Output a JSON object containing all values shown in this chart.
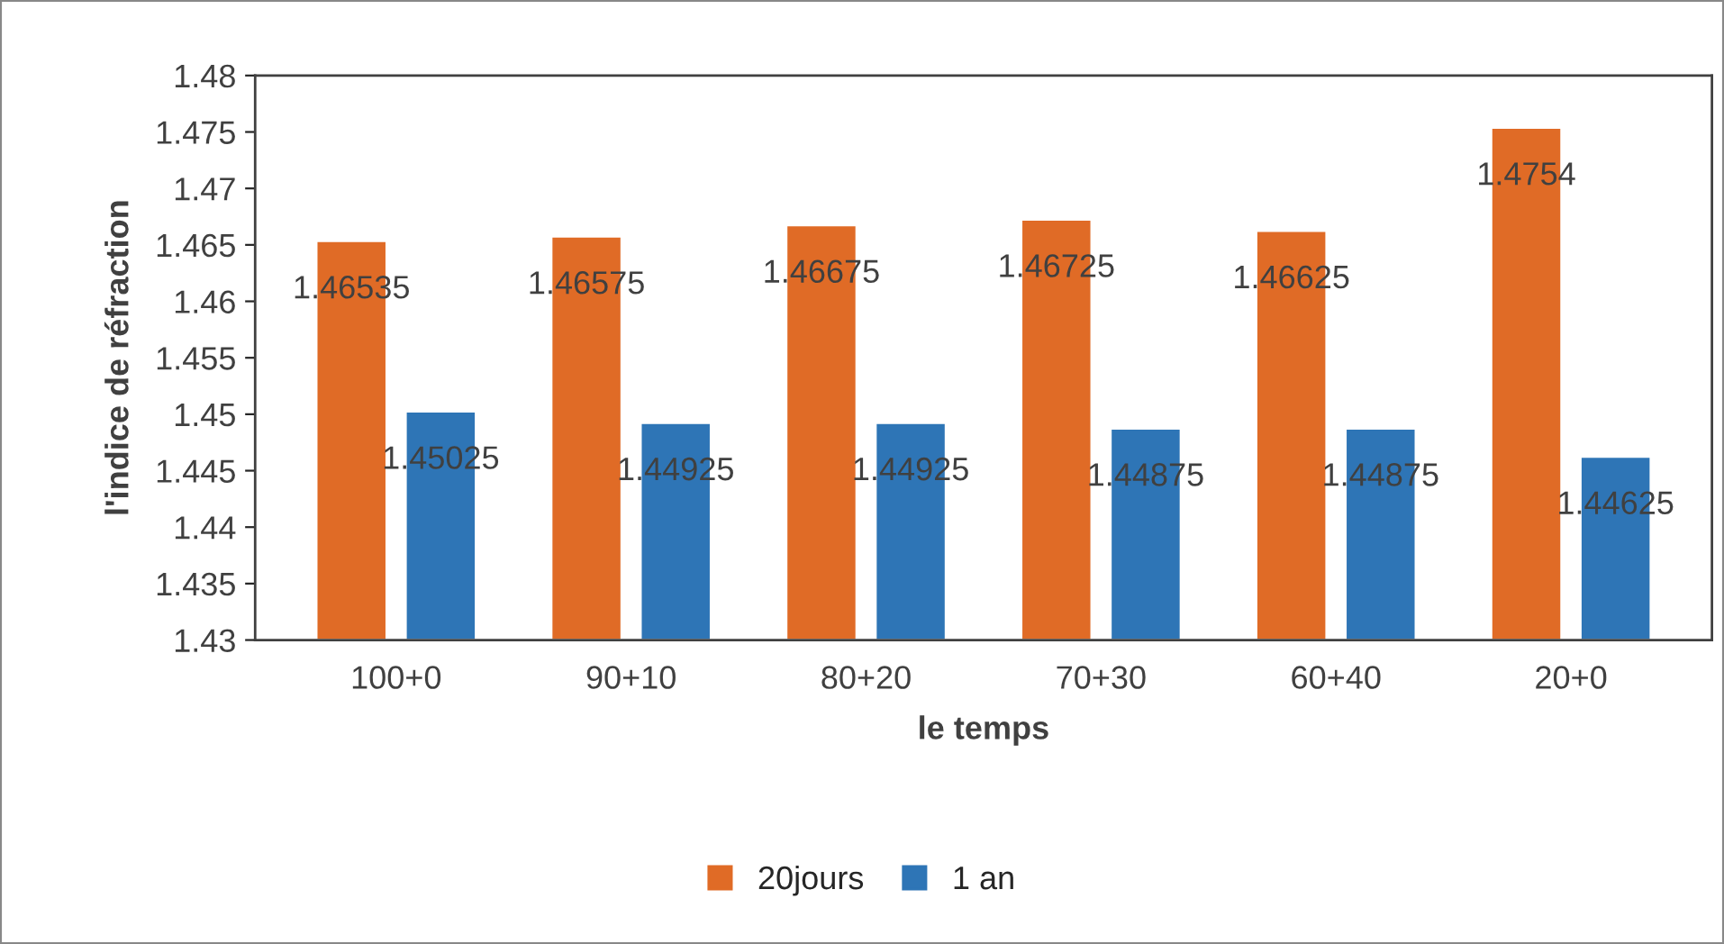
{
  "chart_data": {
    "type": "bar",
    "categories": [
      "100+0",
      "90+10",
      "80+20",
      "70+30",
      "60+40",
      "20+0"
    ],
    "series": [
      {
        "name": "20jours",
        "color": "#e06b26",
        "values": [
          1.46535,
          1.46575,
          1.46675,
          1.46725,
          1.46625,
          1.4754
        ]
      },
      {
        "name": "1 an",
        "color": "#2e75b6",
        "values": [
          1.45025,
          1.44925,
          1.44925,
          1.44875,
          1.44875,
          1.44625
        ]
      }
    ],
    "xlabel": "le temps",
    "ylabel": "l'indice de réfraction",
    "ylim": [
      1.43,
      1.48
    ],
    "yticks": [
      1.43,
      1.435,
      1.44,
      1.445,
      1.45,
      1.455,
      1.46,
      1.465,
      1.47,
      1.475,
      1.48
    ],
    "grid": false,
    "legend": "bottom",
    "data_labels": true
  }
}
